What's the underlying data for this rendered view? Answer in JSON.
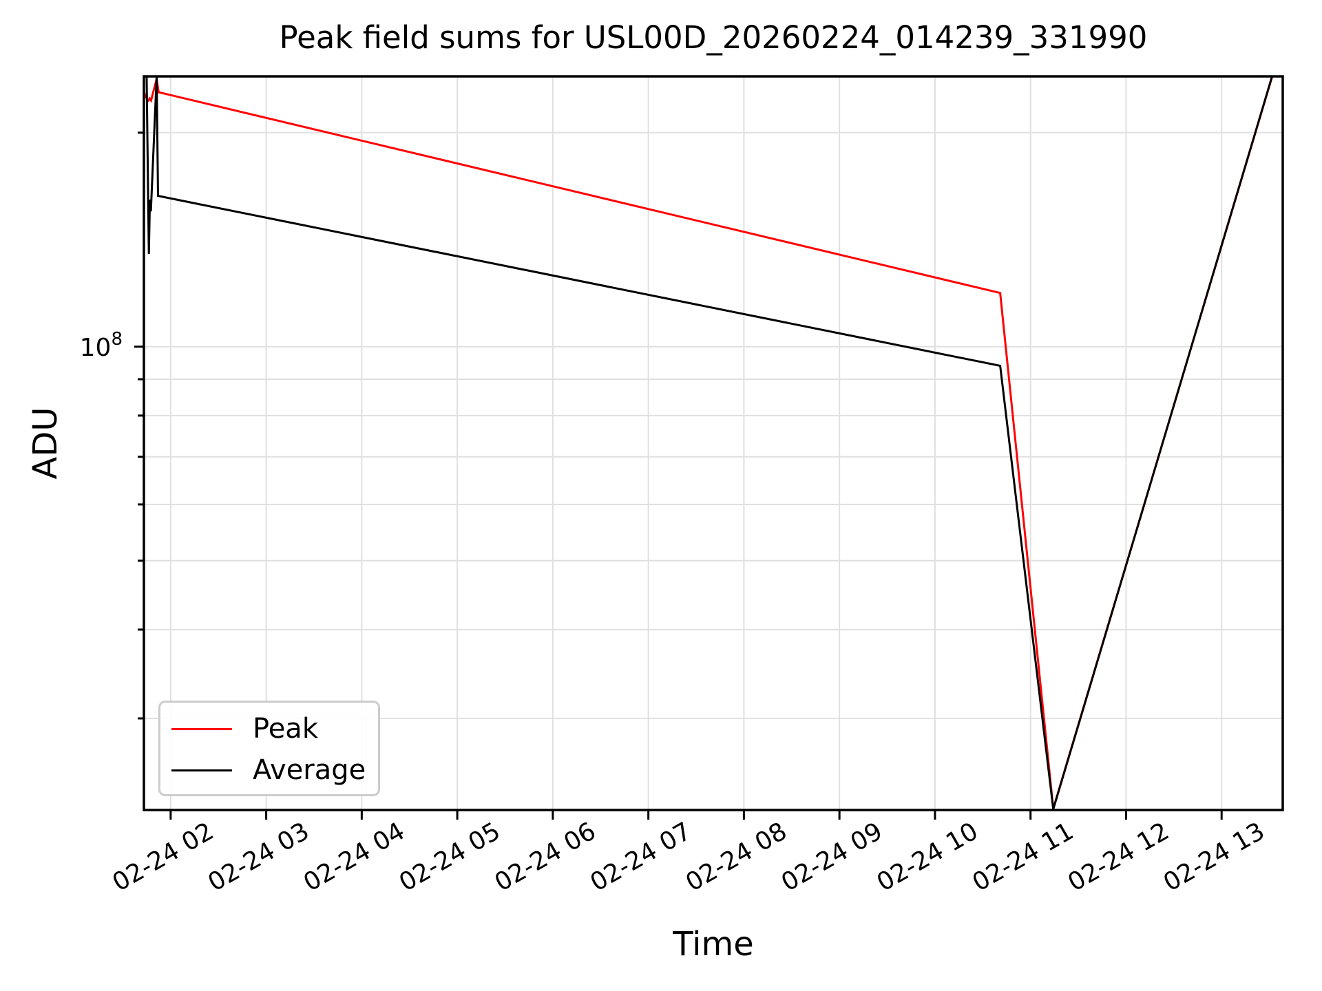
{
  "figure": {
    "background_color": "#ffffff"
  },
  "chart_data": {
    "type": "line",
    "title": "Peak field sums for USL00D_20260224_014239_331990",
    "xlabel": "Time",
    "ylabel": "ADU",
    "x_axis": {
      "unit": "time of day (MM-DD HH)",
      "lim_hours": [
        1.72,
        13.64
      ],
      "tick_rotation_deg": 30,
      "ticks": [
        {
          "hour": 2,
          "label": "02-24 02"
        },
        {
          "hour": 3,
          "label": "02-24 03"
        },
        {
          "hour": 4,
          "label": "02-24 04"
        },
        {
          "hour": 5,
          "label": "02-24 05"
        },
        {
          "hour": 6,
          "label": "02-24 06"
        },
        {
          "hour": 7,
          "label": "02-24 07"
        },
        {
          "hour": 8,
          "label": "02-24 08"
        },
        {
          "hour": 9,
          "label": "02-24 09"
        },
        {
          "hour": 10,
          "label": "02-24 10"
        },
        {
          "hour": 11,
          "label": "02-24 11"
        },
        {
          "hour": 12,
          "label": "02-24 12"
        },
        {
          "hour": 13,
          "label": "02-24 13"
        }
      ]
    },
    "y_axis": {
      "scale": "log",
      "lim": [
        22300000,
        240000000
      ],
      "major_tick": {
        "value": 100000000,
        "label_base": "10",
        "label_exponent": "8"
      },
      "minor_tick_values": [
        200000000,
        90000000,
        80000000,
        70000000,
        60000000,
        50000000,
        40000000,
        30000000
      ]
    },
    "grid": {
      "show": true,
      "color": "#e0e0e0"
    },
    "legend": {
      "position": "lower left",
      "entries": [
        {
          "label": "Peak",
          "color": "#ff0000"
        },
        {
          "label": "Average",
          "color": "#000000"
        }
      ]
    },
    "series": [
      {
        "name": "Peak",
        "color": "#ff0000",
        "points_hour_adu": [
          [
            1.722,
            228000000
          ],
          [
            1.744,
            224000000
          ],
          [
            1.767,
            222000000
          ],
          [
            1.781,
            223500000
          ],
          [
            1.795,
            222000000
          ],
          [
            1.853,
            238000000
          ],
          [
            1.874,
            228000000
          ],
          [
            10.682,
            119000000
          ],
          [
            11.238,
            22400000
          ],
          [
            13.53,
            240000000
          ]
        ]
      },
      {
        "name": "Average",
        "color": "#000000",
        "points_hour_adu": [
          [
            1.748,
            242000000
          ],
          [
            1.772,
            135000000
          ],
          [
            1.783,
            161000000
          ],
          [
            1.793,
            155000000
          ],
          [
            1.853,
            240000000
          ],
          [
            1.868,
            163000000
          ],
          [
            10.682,
            94000000
          ],
          [
            11.238,
            22360000
          ],
          [
            13.528,
            240000000
          ]
        ]
      }
    ]
  }
}
